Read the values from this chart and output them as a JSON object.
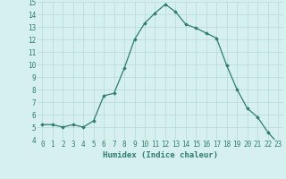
{
  "x": [
    0,
    1,
    2,
    3,
    4,
    5,
    6,
    7,
    8,
    9,
    10,
    11,
    12,
    13,
    14,
    15,
    16,
    17,
    18,
    19,
    20,
    21,
    22,
    23
  ],
  "y": [
    5.2,
    5.2,
    5.0,
    5.2,
    5.0,
    5.5,
    7.5,
    7.7,
    9.7,
    12.0,
    13.3,
    14.1,
    14.8,
    14.2,
    13.2,
    12.9,
    12.5,
    12.1,
    9.9,
    8.0,
    6.5,
    5.8,
    4.6,
    3.7
  ],
  "title": "",
  "xlabel": "Humidex (Indice chaleur)",
  "ylabel": "",
  "xlim": [
    -0.5,
    23.5
  ],
  "ylim": [
    4,
    15
  ],
  "yticks": [
    4,
    5,
    6,
    7,
    8,
    9,
    10,
    11,
    12,
    13,
    14,
    15
  ],
  "xticks": [
    0,
    1,
    2,
    3,
    4,
    5,
    6,
    7,
    8,
    9,
    10,
    11,
    12,
    13,
    14,
    15,
    16,
    17,
    18,
    19,
    20,
    21,
    22,
    23
  ],
  "line_color": "#2e7d6e",
  "marker": "D",
  "marker_size": 1.8,
  "bg_color": "#d6f0ef",
  "grid_color": "#b8d8d4",
  "label_fontsize": 6.5,
  "tick_fontsize": 5.5
}
